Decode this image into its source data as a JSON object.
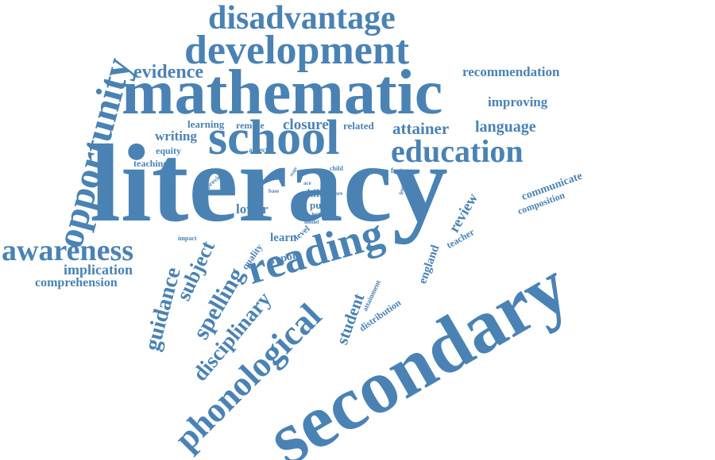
{
  "style": {
    "word_color": "#4a82b4",
    "background": "#ffffff"
  },
  "words": {
    "secondary": "secondary",
    "literacy": "literacy",
    "mathematic": "mathematic",
    "school": "school",
    "development": "development",
    "disadvantage": "disadvantage",
    "reading": "reading",
    "opportunity": "opportunity",
    "education": "education",
    "phonological": "phonological",
    "awareness": "awareness",
    "disciplinary": "disciplinary",
    "spelling": "spelling",
    "guidance": "guidance",
    "subject": "subject",
    "evidence": "evidence",
    "recommendation": "recommendation",
    "improving": "improving",
    "attainer": "attainer",
    "language": "language",
    "closure": "closure",
    "related": "related",
    "learning": "learning",
    "remote": "remote",
    "writing": "writing",
    "equity": "equity",
    "aspect": "aspect",
    "teaching": "teaching",
    "provide": "provide",
    "stage": "stage",
    "ace": "ace",
    "child": "child",
    "factor": "factor",
    "base": "base",
    "more": "more",
    "literate": "literate",
    "skill": "skill",
    "pupil": "pupil",
    "word": "word",
    "model": "model",
    "lower": "lower",
    "level": "level",
    "learn": "learn",
    "quality": "quality",
    "report": "report",
    "impact": "impact",
    "implication": "implication",
    "comprehension": "comprehension",
    "review": "review",
    "communicate": "communicate",
    "composition": "composition",
    "teacher": "teacher",
    "england": "england",
    "student": "student",
    "attainment": "attainment",
    "distribution": "distribution"
  }
}
